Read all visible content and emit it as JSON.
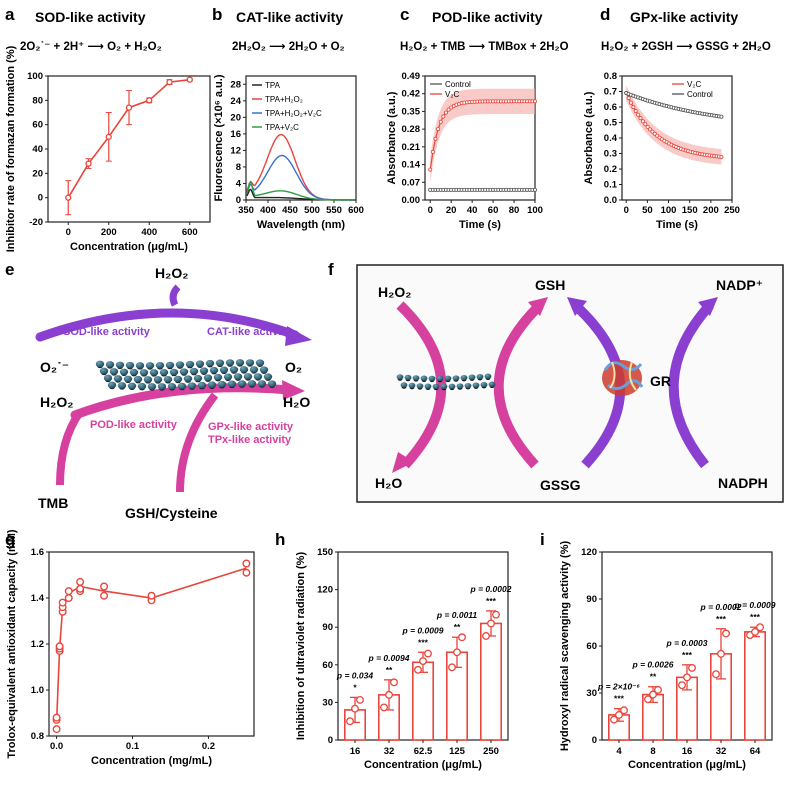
{
  "panels": {
    "a": {
      "label": "a",
      "title": "SOD-like activity",
      "equation": "2O₂˙⁻ + 2H⁺ ⟶ O₂ + H₂O₂"
    },
    "b": {
      "label": "b",
      "title": "CAT-like activity",
      "equation": "2H₂O₂ ⟶ 2H₂O + O₂"
    },
    "c": {
      "label": "c",
      "title": "POD-like activity",
      "equation": "H₂O₂ + TMB ⟶ TMBox + 2H₂O"
    },
    "d": {
      "label": "d",
      "title": "GPx-like activity",
      "equation": "H₂O₂ + 2GSH ⟶ GSSG + 2H₂O"
    },
    "e": {
      "label": "e"
    },
    "f": {
      "label": "f"
    },
    "g": {
      "label": "g"
    },
    "h": {
      "label": "h"
    },
    "i": {
      "label": "i"
    }
  },
  "diagram_e": {
    "h2o2_top": "H₂O₂",
    "sod": "SOD-like activity",
    "cat": "CAT-like activity",
    "o2_radical": "O₂˙⁻",
    "o2": "O₂",
    "h2o2_left": "H₂O₂",
    "h2o": "H₂O",
    "pod": "POD-like activity",
    "gpx": "GPx-like activity",
    "tpx": "TPx-like activity",
    "tmb": "TMB",
    "gsh": "GSH/Cysteine"
  },
  "diagram_f": {
    "h2o2": "H₂O₂",
    "gsh": "GSH",
    "nadp": "NADP⁺",
    "gr": "GR",
    "h2o": "H₂O",
    "gssg": "GSSG",
    "nadph": "NADPH"
  },
  "colors": {
    "red": "#e8453c",
    "pink": "#f4a9a4",
    "black": "#222222",
    "blue": "#3b6fd6",
    "green": "#2f9e44",
    "magenta": "#d6409f",
    "purple": "#8a3fd1",
    "teal": "#2b5f73"
  },
  "chart_data": [
    {
      "id": "a",
      "type": "line",
      "xlabel": "Concentration (μg/mL)",
      "ylabel": "Inhibitor rate of formazan formation (%)",
      "xlim": [
        -100,
        700
      ],
      "ylim": [
        -20,
        100
      ],
      "xticks": [
        0,
        200,
        400,
        600
      ],
      "yticks": [
        -20,
        0,
        20,
        40,
        60,
        80,
        100
      ],
      "x": [
        0,
        100,
        200,
        300,
        400,
        500,
        600
      ],
      "values": [
        0,
        28,
        50,
        74,
        80,
        95,
        97
      ],
      "errors": [
        14,
        4,
        20,
        14,
        2,
        2,
        1
      ]
    },
    {
      "id": "b",
      "type": "line",
      "xlabel": "Wavelength (nm)",
      "ylabel": "Fluorescence (×10⁶ a.u.)",
      "xlim": [
        350,
        600
      ],
      "ylim": [
        0,
        30
      ],
      "xticks": [
        350,
        400,
        450,
        500,
        550,
        600
      ],
      "yticks": [
        0,
        4,
        8,
        12,
        16,
        20,
        24,
        28
      ],
      "series": [
        {
          "name": "TPA",
          "color": "#222222",
          "peak": 430,
          "height": 0.4,
          "width": 60,
          "base": 0.6
        },
        {
          "name": "TPA+H₂O₂",
          "color": "#e8453c",
          "peak": 430,
          "height": 15.5,
          "width": 45,
          "base": 1.2
        },
        {
          "name": "TPA+H₂O₂+V₂C",
          "color": "#3b6fd6",
          "peak": 432,
          "height": 10.5,
          "width": 46,
          "base": 1.0
        },
        {
          "name": "TPA+V₂C",
          "color": "#2f9e44",
          "peak": 430,
          "height": 2.0,
          "width": 50,
          "base": 0.8
        }
      ]
    },
    {
      "id": "c",
      "type": "line",
      "xlabel": "Time (s)",
      "ylabel": "Absorbance (a.u.)",
      "xlim": [
        -5,
        100
      ],
      "ylim": [
        0,
        0.49
      ],
      "xticks": [
        0,
        20,
        40,
        60,
        80,
        100
      ],
      "yticks": [
        "0.00",
        "0.07",
        "0.14",
        "0.21",
        "0.28",
        "0.35",
        "0.42",
        "0.49"
      ],
      "series": [
        {
          "name": "Control",
          "color": "#555555",
          "start": 0.04,
          "plateau": 0.04,
          "rate": 0.1
        },
        {
          "name": "V₂C",
          "color": "#e8453c",
          "start": 0.12,
          "plateau": 0.39,
          "rate": 0.12,
          "band": 0.05
        }
      ]
    },
    {
      "id": "d",
      "type": "line",
      "xlabel": "Time (s)",
      "ylabel": "Absorbance (a.u.)",
      "xlim": [
        -10,
        250
      ],
      "ylim": [
        0,
        0.8
      ],
      "xticks": [
        0,
        50,
        100,
        150,
        200,
        250
      ],
      "yticks": [
        "0.0",
        "0.1",
        "0.2",
        "0.3",
        "0.4",
        "0.5",
        "0.6",
        "0.7",
        "0.8"
      ],
      "series": [
        {
          "name": "V₂C",
          "color": "#e8453c",
          "start": 0.69,
          "plateau": 0.26,
          "rate": 0.014,
          "band": 0.05
        },
        {
          "name": "Control",
          "color": "#555555",
          "start": 0.69,
          "plateau": 0.45,
          "rate": 0.0045
        }
      ]
    },
    {
      "id": "g",
      "type": "scatter",
      "xlabel": "Concentration (mg/mL)",
      "ylabel": "Trolox-equivalent antioxidant capacity (mM)",
      "xlim": [
        -0.01,
        0.26
      ],
      "ylim": [
        0.8,
        1.6
      ],
      "xticks": [
        "0.0",
        "0.1",
        "0.2"
      ],
      "yticks": [
        "0.8",
        "1.0",
        "1.2",
        "1.4",
        "1.6"
      ],
      "line": {
        "x": [
          0,
          0.004,
          0.008,
          0.016,
          0.031,
          0.0625,
          0.125,
          0.25
        ],
        "y": [
          0.86,
          1.18,
          1.36,
          1.42,
          1.45,
          1.43,
          1.4,
          1.53
        ]
      },
      "points": [
        [
          0,
          0.83
        ],
        [
          0,
          0.87
        ],
        [
          0,
          0.88
        ],
        [
          0.004,
          1.17
        ],
        [
          0.004,
          1.18
        ],
        [
          0.004,
          1.19
        ],
        [
          0.008,
          1.34
        ],
        [
          0.008,
          1.36
        ],
        [
          0.008,
          1.38
        ],
        [
          0.016,
          1.4
        ],
        [
          0.016,
          1.43
        ],
        [
          0.031,
          1.43
        ],
        [
          0.031,
          1.44
        ],
        [
          0.031,
          1.47
        ],
        [
          0.0625,
          1.41
        ],
        [
          0.0625,
          1.45
        ],
        [
          0.125,
          1.39
        ],
        [
          0.125,
          1.41
        ],
        [
          0.25,
          1.51
        ],
        [
          0.25,
          1.55
        ]
      ]
    },
    {
      "id": "h",
      "type": "bar",
      "xlabel": "Concentration (μg/mL)",
      "ylabel": "Inhibition of ultraviolet radiation (%)",
      "ylim": [
        0,
        150
      ],
      "yticks": [
        0,
        30,
        60,
        90,
        120,
        150
      ],
      "categories": [
        "16",
        "32",
        "62.5",
        "125",
        "250"
      ],
      "values": [
        24,
        36,
        62,
        70,
        93
      ],
      "errors": [
        10,
        12,
        8,
        12,
        10
      ],
      "points": [
        [
          15,
          25,
          32
        ],
        [
          26,
          36,
          46
        ],
        [
          56,
          63,
          69
        ],
        [
          58,
          70,
          82
        ],
        [
          83,
          93,
          100
        ]
      ],
      "p_values": [
        "p = 0.034",
        "p = 0.0094",
        "p = 0.0009",
        "p = 0.0011",
        "p = 0.0002"
      ],
      "stars": [
        "*",
        "**",
        "***",
        "**",
        "***"
      ]
    },
    {
      "id": "i",
      "type": "bar",
      "xlabel": "Concentration (μg/mL)",
      "ylabel": "Hydroxyl radical scavenging activity (%)",
      "ylim": [
        0,
        120
      ],
      "yticks": [
        0,
        30,
        60,
        90,
        120
      ],
      "categories": [
        "4",
        "8",
        "16",
        "32",
        "64"
      ],
      "values": [
        16,
        29,
        40,
        55,
        69
      ],
      "errors": [
        4,
        5,
        8,
        16,
        3
      ],
      "points": [
        [
          13,
          16,
          19
        ],
        [
          26,
          29,
          32
        ],
        [
          35,
          40,
          46
        ],
        [
          42,
          55,
          68
        ],
        [
          67,
          69,
          72
        ]
      ],
      "p_values": [
        "p = 2×10⁻⁶",
        "p = 0.0026",
        "p = 0.0003",
        "p = 0.0002",
        "p = 0.0009"
      ],
      "stars": [
        "***",
        "**",
        "***",
        "***",
        "***"
      ]
    }
  ]
}
